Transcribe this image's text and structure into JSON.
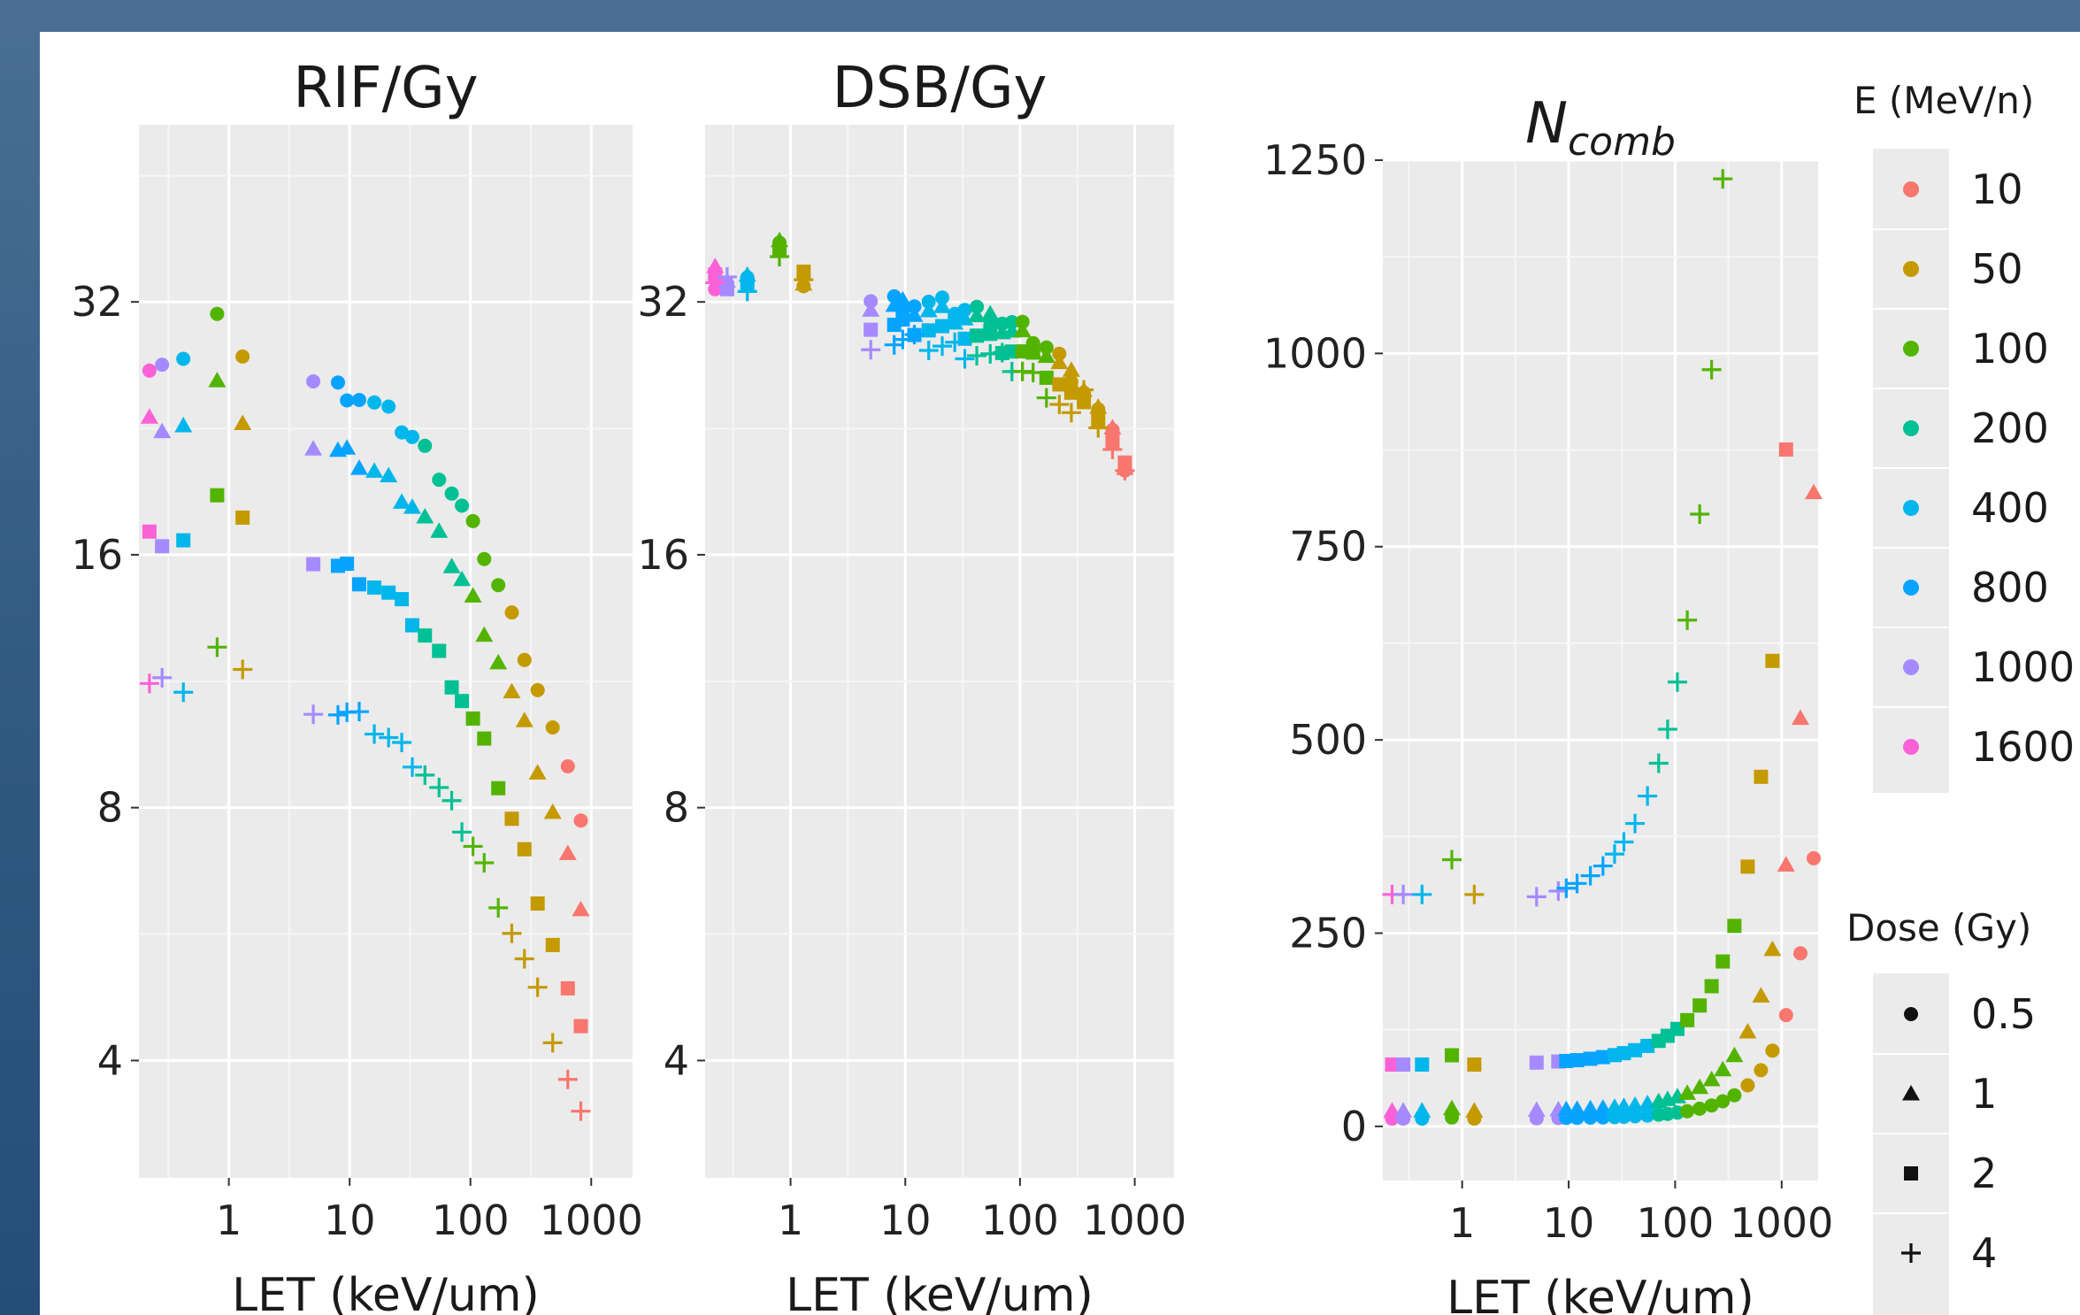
{
  "chart_data": [
    {
      "type": "scatter",
      "title": "RIF/Gy",
      "xlabel": "LET (keV/um)",
      "x_scale": "log",
      "y_scale": "log",
      "x_ticks": [
        "1",
        "10",
        "100",
        "1000"
      ],
      "y_ticks": [
        "4",
        "8",
        "16",
        "32"
      ],
      "xlim": [
        0.18,
        2200
      ],
      "ylim": [
        2.9,
        52
      ],
      "curves": [
        {
          "dose": "0.5",
          "base": 28,
          "decay": 1.0
        },
        {
          "dose": "1",
          "base": 23.5,
          "decay": 1.05
        },
        {
          "dose": "2",
          "base": 17.3,
          "decay": 1.1
        },
        {
          "dose": "4",
          "base": 11.5,
          "decay": 0.95
        }
      ]
    },
    {
      "type": "scatter",
      "title": "DSB/Gy",
      "xlabel": "LET (keV/um)",
      "x_scale": "log",
      "y_scale": "log",
      "x_ticks": [
        "1",
        "10",
        "100",
        "1000"
      ],
      "y_ticks": [
        "4",
        "8",
        "16",
        "32"
      ],
      "xlim": [
        0.18,
        2200
      ],
      "ylim": [
        2.9,
        52
      ],
      "curves": [
        {
          "dose": "0.5",
          "base": 35,
          "decay": 0.75
        },
        {
          "dose": "1",
          "base": 35.5,
          "decay": 0.75
        },
        {
          "dose": "2",
          "base": 35,
          "decay": 0.78
        },
        {
          "dose": "4",
          "base": 34.5,
          "decay": 0.78
        }
      ]
    },
    {
      "type": "scatter",
      "title": "N",
      "title_sub": "comb",
      "xlabel": "LET (keV/um)",
      "x_scale": "log",
      "y_scale": "linear",
      "x_ticks": [
        "1",
        "10",
        "100",
        "1000"
      ],
      "y_ticks": [
        "0",
        "250",
        "500",
        "750",
        "1000",
        "1250"
      ],
      "xlim": [
        0.18,
        2200
      ],
      "ylim": [
        -70,
        1250
      ]
    }
  ],
  "legend": {
    "energy_title": "E (MeV/n)",
    "energies": [
      {
        "label": "10",
        "color": "#F8766D"
      },
      {
        "label": "50",
        "color": "#C49A00"
      },
      {
        "label": "100",
        "color": "#53B400"
      },
      {
        "label": "200",
        "color": "#00C094"
      },
      {
        "label": "400",
        "color": "#00B6EB"
      },
      {
        "label": "800",
        "color": "#06A4FF"
      },
      {
        "label": "1000",
        "color": "#A58AFF"
      },
      {
        "label": "1600",
        "color": "#FB61D7"
      }
    ],
    "dose_title": "Dose (Gy)",
    "doses": [
      {
        "label": "0.5",
        "shape": "circle"
      },
      {
        "label": "1",
        "shape": "triangle"
      },
      {
        "label": "2",
        "shape": "square"
      },
      {
        "label": "4",
        "shape": "plus"
      }
    ]
  }
}
